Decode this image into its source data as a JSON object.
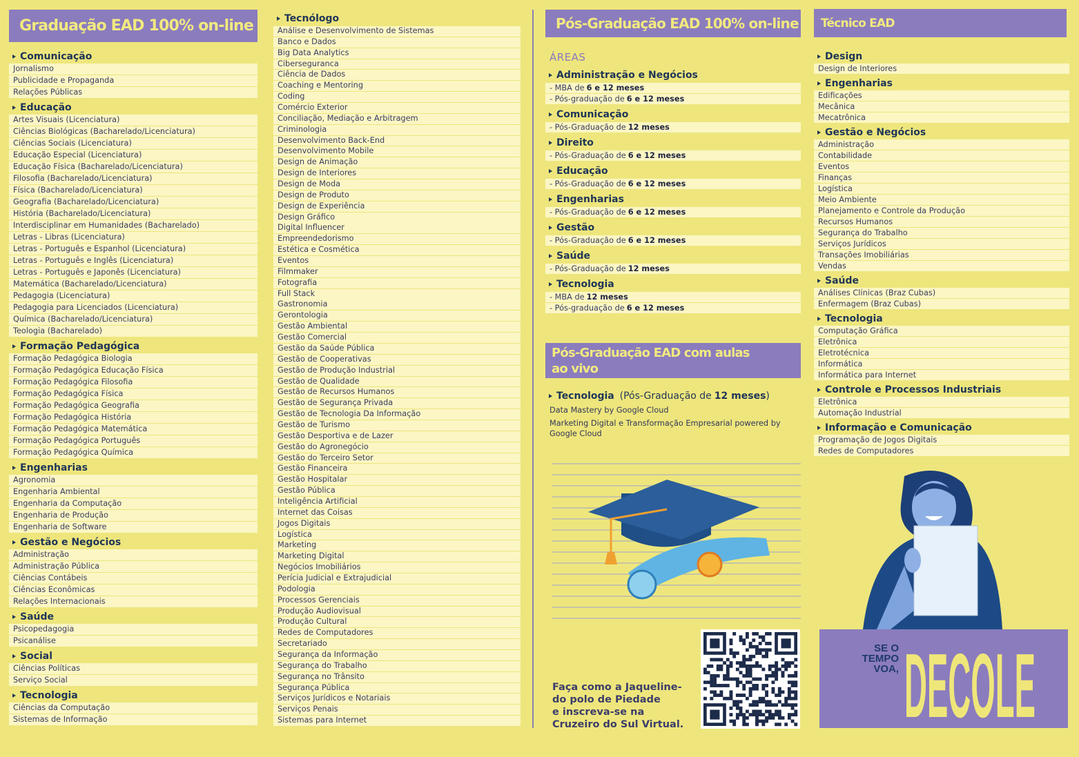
{
  "graduacao": {
    "title": "Graduação EAD 100% on-line",
    "sections": [
      {
        "title": "Comunicação",
        "items": [
          "Jornalismo",
          "Publicidade e Propaganda",
          "Relações Públicas"
        ]
      },
      {
        "title": "Educação",
        "items": [
          "Artes Visuais (Licenciatura)",
          "Ciências Biológicas (Bacharelado/Licenciatura)",
          "Ciências Sociais (Licenciatura)",
          "Educação Especial (Licenciatura)",
          "Educação Física (Bacharelado/Licenciatura)",
          "Filosofia (Bacharelado/Licenciatura)",
          "Física (Bacharelado/Licenciatura)",
          "Geografia (Bacharelado/Licenciatura)",
          "História (Bacharelado/Licenciatura)",
          "Interdisciplinar em Humanidades (Bacharelado)",
          "Letras - Libras (Licenciatura)",
          "Letras - Português e Espanhol (Licenciatura)",
          "Letras - Português e Inglês (Licenciatura)",
          "Letras - Português e Japonês (Licenciatura)",
          "Matemática (Bacharelado/Licenciatura)",
          "Pedagogia (Licenciatura)",
          "Pedagogia para Licenciados (Licenciatura)",
          "Química (Bacharelado/Licenciatura)",
          "Teologia (Bacharelado)"
        ]
      },
      {
        "title": "Formação Pedagógica",
        "items": [
          "Formação Pedagógica Biologia",
          "Formação Pedagógica Educação Física",
          "Formação Pedagógica Filosofia",
          "Formação Pedagógica Física",
          "Formação Pedagógica Geografia",
          "Formação Pedagógica História",
          "Formação Pedagógica Matemática",
          "Formação Pedagógica Português",
          "Formação Pedagógica Química"
        ]
      },
      {
        "title": "Engenharias",
        "items": [
          "Agronomia",
          "Engenharia Ambiental",
          "Engenharia da Computação",
          "Engenharia de Produção",
          "Engenharia de Software"
        ]
      },
      {
        "title": "Gestão e Negócios",
        "items": [
          "Administração",
          "Administração Pública",
          "Ciências Contábeis",
          "Ciências Econômicas",
          "Relações Internacionais"
        ]
      },
      {
        "title": "Saúde",
        "items": [
          "Psicopedagogia",
          "Psicanálise"
        ]
      },
      {
        "title": "Social",
        "items": [
          "Ciências Políticas",
          "Serviço Social"
        ]
      },
      {
        "title": "Tecnologia",
        "items": [
          "Ciências da Computação",
          "Sistemas de Informação"
        ]
      }
    ]
  },
  "tecnologo": {
    "title": "Tecnólogo",
    "items": [
      "Análise e Desenvolvimento de Sistemas",
      "Banco e Dados",
      "Big Data Analytics",
      "Ciberseguranca",
      "Ciência de Dados",
      "Coaching e Mentoring",
      "Coding",
      "Comércio Exterior",
      "Conciliação, Mediação e Arbitragem",
      "Criminologia",
      "Desenvolvimento Back-End",
      "Desenvolvimento Mobile",
      "Design de Animação",
      "Design de Interiores",
      "Design de Moda",
      "Design de Produto",
      "Design de Experiência",
      "Design Gráfico",
      "Digital Influencer",
      "Empreendedorismo",
      "Estética e Cosmética",
      "Eventos",
      "Filmmaker",
      "Fotografia",
      "Full Stack",
      "Gastronomia",
      "Gerontologia",
      "Gestão Ambiental",
      "Gestão Comercial",
      "Gestão da Saúde Pública",
      "Gestão de Cooperativas",
      "Gestão de Produção Industrial",
      "Gestão de Qualidade",
      "Gestão de Recursos Humanos",
      "Gestão de Segurança Privada",
      "Gestão de Tecnologia Da Informação",
      "Gestão de Turismo",
      "Gestão Desportiva e de Lazer",
      "Gestão do Agronegócio",
      "Gestão do Terceiro Setor",
      "Gestão Financeira",
      "Gestão Hospitalar",
      "Gestão Pública",
      "Inteligência Artificial",
      "Internet das Coisas",
      "Jogos Digitais",
      "Logística",
      "Marketing",
      "Marketing Digital",
      "Negócios Imobiliários",
      "Perícia Judicial e Extrajudicial",
      "Podologia",
      "Processos Gerenciais",
      "Produção Audiovisual",
      "Produção Cultural",
      "Redes de Computadores",
      "Secretariado",
      "Segurança da Informação",
      "Segurança do Trabalho",
      "Segurança no Trânsito",
      "Segurança Pública",
      "Serviços Jurídicos e Notariais",
      "Serviços Penais",
      "Sistemas para Internet"
    ]
  },
  "pos_graduacao": {
    "title": "Pós-Graduação EAD 100% on-line",
    "areas_label": "ÁREAS",
    "sections": [
      {
        "title": "Administração e Negócios",
        "items": [
          {
            "text": "- MBA de",
            "bold": "6 e 12 meses"
          },
          {
            "text": "- Pós-graduação de",
            "bold": "6 e 12 meses"
          }
        ]
      },
      {
        "title": "Comunicação",
        "items": [
          {
            "text": "- Pós-Graduação de",
            "bold": "12 meses"
          }
        ]
      },
      {
        "title": "Direito",
        "items": [
          {
            "text": "- Pós-Graduação de",
            "bold": "6 e 12 meses"
          }
        ]
      },
      {
        "title": "Educação",
        "items": [
          {
            "text": "- Pós-Graduação de",
            "bold": "6 e 12 meses"
          }
        ]
      },
      {
        "title": "Engenharias",
        "items": [
          {
            "text": "- Pós-Graduação de",
            "bold": "6 e 12 meses"
          }
        ]
      },
      {
        "title": "Gestão",
        "items": [
          {
            "text": "- Pós-Graduação de",
            "bold": "6 e 12 meses"
          }
        ]
      },
      {
        "title": "Saúde",
        "items": [
          {
            "text": "- Pós-Graduação de",
            "bold": "12 meses"
          }
        ]
      },
      {
        "title": "Tecnologia",
        "items": [
          {
            "text": "- MBA de",
            "bold": "12 meses"
          },
          {
            "text": "- Pós-graduação de",
            "bold": "6 e 12 meses"
          }
        ]
      }
    ]
  },
  "pos_ao_vivo": {
    "title": "Pós-Graduação EAD com aulas ao vivo",
    "section_title": "Tecnologia",
    "note_prefix": "(Pós-Graduação de",
    "note_bold": "12 meses",
    "note_suffix": ")",
    "items": [
      "Data Mastery by Google Cloud",
      "Marketing Digital e Transformação Empresarial powered by Google Cloud"
    ]
  },
  "footer_lines": [
    "Faça como a Jaqueline-",
    "do polo de Piedade",
    "e inscreva-se na",
    "Cruzeiro do Sul Virtual."
  ],
  "tecnico": {
    "title": "Técnico EAD",
    "sections": [
      {
        "title": "Design",
        "items": [
          "Design de Interiores"
        ]
      },
      {
        "title": "Engenharias",
        "items": [
          "Edificações",
          "Mecânica",
          "Mecatrônica"
        ]
      },
      {
        "title": "Gestão e Negócios",
        "items": [
          "Administração",
          "Contabilidade",
          "Eventos",
          "Finanças",
          "Logística",
          "Meio Ambiente",
          "Planejamento e Controle da Produção",
          "Recursos Humanos",
          "Segurança do Trabalho",
          "Serviços Jurídicos",
          "Transações Imobiliárias",
          "Vendas"
        ]
      },
      {
        "title": "Saúde",
        "items": [
          "Análises Clínicas (Braz Cubas)",
          "Enfermagem (Braz Cubas)"
        ]
      },
      {
        "title": "Tecnologia",
        "items": [
          "Computação Gráfica",
          "Eletrônica",
          "Eletrotécnica",
          "Informática",
          "Informática para Internet"
        ]
      },
      {
        "title": "Controle e Processos Industriais",
        "items": [
          "Eletrônica",
          "Automação Industrial"
        ]
      },
      {
        "title": "Informação e Comunicação",
        "items": [
          "Programação de Jogos Digitais",
          "Redes de Computadores"
        ]
      }
    ]
  },
  "banner": {
    "small_lines": [
      "SE O",
      "TEMPO",
      "VOA,"
    ],
    "big": "DECOLE"
  }
}
